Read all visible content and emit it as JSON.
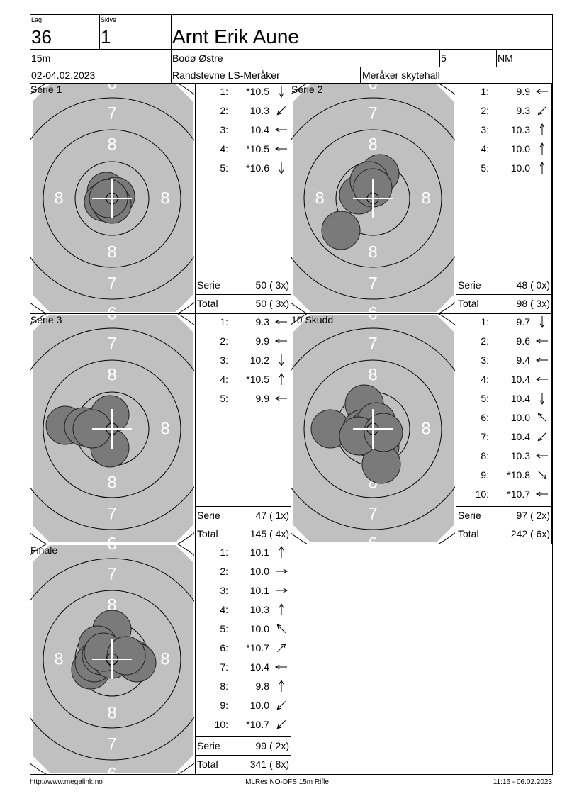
{
  "header": {
    "lag_label": "Lag",
    "lag": "36",
    "skive_label": "Skive",
    "skive": "1",
    "name": "Arnt Erik Aune",
    "distance": "15m",
    "club": "Bodø Østre",
    "class": "5",
    "event": "NM",
    "date": "02-04.02.2023",
    "competition": "Randstevne LS-Meråker",
    "venue": "Meråker skytehall"
  },
  "target": {
    "ring_labels": [
      "6",
      "7",
      "8"
    ]
  },
  "panels": [
    {
      "title": "Serie 1",
      "shots": [
        {
          "index": "1:",
          "value": "*10.5"
        },
        {
          "index": "2:",
          "value": "10.3"
        },
        {
          "index": "3:",
          "value": "10.4"
        },
        {
          "index": "4:",
          "value": "*10.5"
        },
        {
          "index": "5:",
          "value": "*10.6"
        }
      ],
      "serie_label": "Serie",
      "serie": "50 ( 3x)",
      "total_label": "Total",
      "total": "50 ( 3x)"
    },
    {
      "title": "Serie 2",
      "shots": [
        {
          "index": "1:",
          "value": "9.9"
        },
        {
          "index": "2:",
          "value": "9.3"
        },
        {
          "index": "3:",
          "value": "10.3"
        },
        {
          "index": "4:",
          "value": "10.0"
        },
        {
          "index": "5:",
          "value": "10.0"
        }
      ],
      "serie_label": "Serie",
      "serie": "48 ( 0x)",
      "total_label": "Total",
      "total": "98 ( 3x)"
    },
    {
      "title": "Serie 3",
      "shots": [
        {
          "index": "1:",
          "value": "9.3"
        },
        {
          "index": "2:",
          "value": "9.9"
        },
        {
          "index": "3:",
          "value": "10.2"
        },
        {
          "index": "4:",
          "value": "*10.5"
        },
        {
          "index": "5:",
          "value": "9.9"
        }
      ],
      "serie_label": "Serie",
      "serie": "47 ( 1x)",
      "total_label": "Total",
      "total": "145 ( 4x)"
    },
    {
      "title": "10 Skudd",
      "shots": [
        {
          "index": "1:",
          "value": "9.7"
        },
        {
          "index": "2:",
          "value": "9.6"
        },
        {
          "index": "3:",
          "value": "9.4"
        },
        {
          "index": "4:",
          "value": "10.4"
        },
        {
          "index": "5:",
          "value": "10.4"
        },
        {
          "index": "6:",
          "value": "10.0"
        },
        {
          "index": "7:",
          "value": "10.4"
        },
        {
          "index": "8:",
          "value": "10.3"
        },
        {
          "index": "9:",
          "value": "*10.8"
        },
        {
          "index": "10:",
          "value": "*10.7"
        }
      ],
      "serie_label": "Serie",
      "serie": "97 ( 2x)",
      "total_label": "Total",
      "total": "242 ( 6x)"
    },
    {
      "title": "Finale",
      "shots": [
        {
          "index": "1:",
          "value": "10.1"
        },
        {
          "index": "2:",
          "value": "10.0"
        },
        {
          "index": "3:",
          "value": "10.1"
        },
        {
          "index": "4:",
          "value": "10.3"
        },
        {
          "index": "5:",
          "value": "10.0"
        },
        {
          "index": "6:",
          "value": "*10.7"
        },
        {
          "index": "7:",
          "value": "10.4"
        },
        {
          "index": "8:",
          "value": "9.8"
        },
        {
          "index": "9:",
          "value": "10.0"
        },
        {
          "index": "10:",
          "value": "*10.7"
        }
      ],
      "serie_label": "Serie",
      "serie": "99 ( 2x)",
      "total_label": "Total",
      "total": "341 ( 8x)"
    }
  ],
  "footer": {
    "left": "http://www.megalink.no",
    "center": "MLRes NO-DFS 15m Rifle",
    "right": "11:16 - 06.02.2023"
  }
}
